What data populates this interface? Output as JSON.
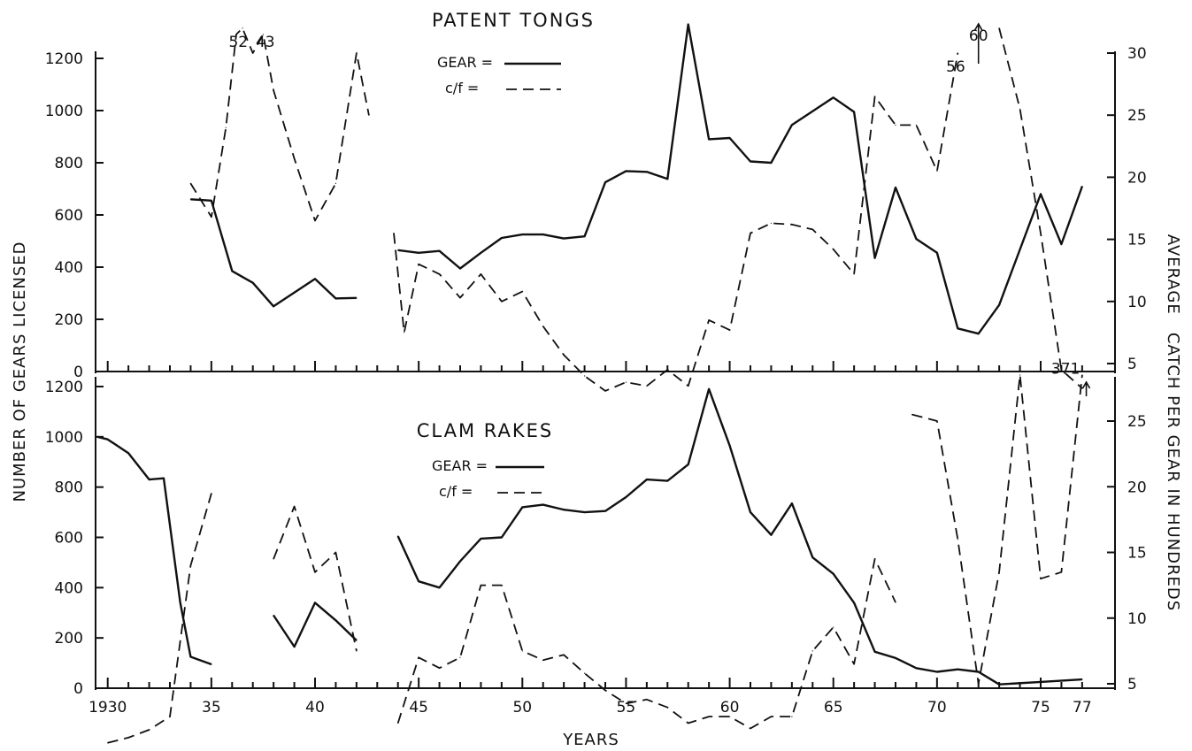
{
  "y_left_title": "NUMBER OF GEARS LICENSED",
  "y_right_title": "AVERAGE   CATCH PER GEAR IN HUNDREDS",
  "x_title": "YEARS",
  "x_tick_labels": [
    {
      "year": 1930,
      "label": "1930"
    },
    {
      "year": 1935,
      "label": "35"
    },
    {
      "year": 1940,
      "label": "40"
    },
    {
      "year": 1945,
      "label": "45"
    },
    {
      "year": 1950,
      "label": "50"
    },
    {
      "year": 1955,
      "label": "55"
    },
    {
      "year": 1960,
      "label": "60"
    },
    {
      "year": 1965,
      "label": "65"
    },
    {
      "year": 1970,
      "label": "70"
    },
    {
      "year": 1975,
      "label": "75"
    },
    {
      "year": 1977,
      "label": "77"
    }
  ],
  "chart_data": [
    {
      "type": "line",
      "title": "PATENT TONGS",
      "xlabel": "YEARS",
      "ylabel": "NUMBER OF GEARS LICENSED",
      "y2label": "AVERAGE CATCH PER GEAR IN HUNDREDS",
      "xlim": [
        1929.5,
        1978.5
      ],
      "ylim": [
        0,
        1200
      ],
      "y2lim": [
        0,
        30
      ],
      "y_ticks": [
        0,
        200,
        400,
        600,
        800,
        1000,
        1200
      ],
      "y2_ticks": [
        5,
        10,
        15,
        20,
        25,
        30
      ],
      "legend": [
        {
          "label": "GEAR =",
          "style": "solid"
        },
        {
          "label": "c/f =",
          "style": "dashed"
        }
      ],
      "series": [
        {
          "name": "GEAR",
          "axis": "left",
          "style": "solid",
          "segments": [
            [
              [
                1934,
                660
              ],
              [
                1935,
                655
              ],
              [
                1936,
                385
              ],
              [
                1937,
                340
              ],
              [
                1938,
                250
              ],
              [
                1940,
                355
              ],
              [
                1941,
                280
              ],
              [
                1942,
                282
              ]
            ],
            [
              [
                1944,
                465
              ],
              [
                1945,
                455
              ],
              [
                1946,
                462
              ],
              [
                1947,
                395
              ],
              [
                1948,
                455
              ],
              [
                1949,
                512
              ],
              [
                1950,
                525
              ],
              [
                1951,
                525
              ],
              [
                1952,
                510
              ],
              [
                1953,
                518
              ],
              [
                1954,
                725
              ],
              [
                1955,
                768
              ],
              [
                1956,
                765
              ],
              [
                1957,
                738
              ],
              [
                1958,
                1330
              ],
              [
                1959,
                890
              ],
              [
                1960,
                895
              ],
              [
                1961,
                805
              ],
              [
                1962,
                800
              ],
              [
                1963,
                945
              ],
              [
                1965,
                1050
              ],
              [
                1966,
                995
              ],
              [
                1967,
                435
              ],
              [
                1968,
                705
              ],
              [
                1969,
                508
              ],
              [
                1970,
                455
              ],
              [
                1971,
                165
              ],
              [
                1972,
                145
              ],
              [
                1973,
                255
              ],
              [
                1975,
                680
              ],
              [
                1976,
                488
              ],
              [
                1977,
                710
              ]
            ]
          ]
        },
        {
          "name": "c/f",
          "axis": "right",
          "style": "dashed",
          "segments": [
            [
              [
                1934,
                19.5
              ],
              [
                1935,
                16.8
              ],
              [
                1935.7,
                24
              ],
              [
                1936.2,
                31.5
              ],
              [
                1936.5,
                32
              ],
              [
                1937,
                30
              ],
              [
                1937.5,
                31.5
              ],
              [
                1938,
                27
              ],
              [
                1939,
                21.5
              ],
              [
                1940,
                16.5
              ],
              [
                1941,
                19.5
              ],
              [
                1942,
                30
              ],
              [
                1942.6,
                25
              ]
            ],
            [
              [
                1943.8,
                15.5
              ],
              [
                1944.3,
                7.5
              ],
              [
                1945,
                13
              ],
              [
                1946,
                12.2
              ],
              [
                1947,
                10.3
              ],
              [
                1948,
                12.2
              ],
              [
                1949,
                10
              ],
              [
                1950,
                10.8
              ],
              [
                1951,
                8
              ],
              [
                1952,
                5.7
              ],
              [
                1953,
                4
              ],
              [
                1954,
                2.8
              ],
              [
                1955,
                3.5
              ],
              [
                1956,
                3.2
              ],
              [
                1957,
                4.5
              ],
              [
                1958,
                3.2
              ],
              [
                1959,
                8.5
              ],
              [
                1960,
                7.7
              ],
              [
                1961,
                15.5
              ],
              [
                1962,
                16.3
              ],
              [
                1963,
                16.2
              ],
              [
                1964,
                15.8
              ],
              [
                1965,
                14.2
              ],
              [
                1966,
                12.2
              ],
              [
                1967,
                26.5
              ],
              [
                1968,
                24.2
              ],
              [
                1969,
                24.2
              ],
              [
                1970,
                20.5
              ],
              [
                1971,
                30
              ]
            ],
            [
              [
                1973,
                32
              ],
              [
                1974,
                25.5
              ],
              [
                1975,
                15.5
              ],
              [
                1976,
                4.5
              ],
              [
                1977,
                3
              ]
            ]
          ]
        }
      ],
      "annotations": [
        {
          "label": "52",
          "x": 1936.3,
          "y": 30.5
        },
        {
          "label": "43",
          "x": 1937.6,
          "y": 30.5
        },
        {
          "label": "56",
          "x": 1970.9,
          "y": 28.5
        },
        {
          "label": "60",
          "x": 1972,
          "y": 31
        }
      ]
    },
    {
      "type": "line",
      "title": "CLAM RAKES",
      "xlabel": "YEARS",
      "ylabel": "NUMBER OF GEARS LICENSED",
      "y2label": "AVERAGE CATCH PER GEAR IN HUNDREDS",
      "xlim": [
        1929.5,
        1978.5
      ],
      "ylim": [
        0,
        1200
      ],
      "y2lim": [
        0,
        30
      ],
      "y_ticks": [
        0,
        200,
        400,
        600,
        800,
        1000,
        1200
      ],
      "y2_ticks": [
        5,
        10,
        15,
        20,
        25
      ],
      "legend": [
        {
          "label": "GEAR =",
          "style": "solid"
        },
        {
          "label": "c/f =",
          "style": "dashed"
        }
      ],
      "series": [
        {
          "name": "GEAR",
          "axis": "left",
          "style": "solid",
          "segments": [
            [
              [
                1929.5,
                1000
              ],
              [
                1930,
                990
              ],
              [
                1931,
                935
              ],
              [
                1932,
                830
              ],
              [
                1932.7,
                835
              ],
              [
                1933.5,
                340
              ],
              [
                1934,
                125
              ],
              [
                1935,
                95
              ]
            ],
            [
              [
                1938,
                290
              ],
              [
                1939,
                165
              ],
              [
                1940,
                340
              ],
              [
                1941,
                270
              ],
              [
                1942,
                190
              ]
            ],
            [
              [
                1944,
                605
              ],
              [
                1945,
                425
              ],
              [
                1946,
                400
              ],
              [
                1947,
                505
              ],
              [
                1948,
                595
              ],
              [
                1949,
                600
              ],
              [
                1950,
                720
              ],
              [
                1951,
                730
              ],
              [
                1952,
                710
              ],
              [
                1953,
                700
              ],
              [
                1954,
                705
              ],
              [
                1955,
                760
              ],
              [
                1956,
                830
              ],
              [
                1957,
                825
              ],
              [
                1958,
                890
              ],
              [
                1959,
                1190
              ],
              [
                1960,
                965
              ],
              [
                1961,
                700
              ],
              [
                1962,
                610
              ],
              [
                1963,
                735
              ],
              [
                1964,
                520
              ],
              [
                1965,
                455
              ],
              [
                1966,
                340
              ],
              [
                1967,
                145
              ],
              [
                1968,
                120
              ],
              [
                1969,
                80
              ],
              [
                1970,
                65
              ],
              [
                1971,
                75
              ],
              [
                1972,
                65
              ],
              [
                1973,
                15
              ],
              [
                1975,
                25
              ],
              [
                1977,
                35
              ]
            ]
          ]
        },
        {
          "name": "c/f",
          "axis": "right",
          "style": "dashed",
          "segments": [
            [
              [
                1930,
                0.5
              ],
              [
                1931,
                0.9
              ],
              [
                1932,
                1.5
              ],
              [
                1933,
                2.5
              ],
              [
                1934,
                14
              ],
              [
                1935,
                19.5
              ]
            ],
            [
              [
                1938,
                14.5
              ],
              [
                1939,
                18.5
              ],
              [
                1940,
                13.5
              ],
              [
                1941,
                15
              ],
              [
                1942,
                7.5
              ]
            ],
            [
              [
                1944,
                2
              ],
              [
                1945,
                7
              ],
              [
                1946,
                6.2
              ],
              [
                1947,
                7
              ],
              [
                1948,
                12.5
              ],
              [
                1949,
                12.5
              ],
              [
                1950,
                7.5
              ],
              [
                1951,
                6.8
              ],
              [
                1952,
                7.2
              ],
              [
                1953,
                5.8
              ],
              [
                1954,
                4.5
              ],
              [
                1955,
                3.5
              ],
              [
                1956,
                3.8
              ],
              [
                1957,
                3.2
              ],
              [
                1958,
                2
              ],
              [
                1959,
                2.5
              ],
              [
                1960,
                2.5
              ],
              [
                1961,
                1.6
              ],
              [
                1962,
                2.5
              ],
              [
                1963,
                2.5
              ],
              [
                1964,
                7.5
              ],
              [
                1965,
                9.3
              ],
              [
                1966,
                6.5
              ],
              [
                1967,
                14.5
              ],
              [
                1968,
                11.2
              ]
            ],
            [
              [
                1968.8,
                25.5
              ],
              [
                1970,
                25
              ],
              [
                1971,
                16
              ],
              [
                1972,
                5
              ],
              [
                1973,
                13.5
              ],
              [
                1974,
                28.5
              ],
              [
                1975,
                13
              ],
              [
                1976,
                13.5
              ],
              [
                1977,
                28.5
              ]
            ]
          ]
        }
      ],
      "annotations": [
        {
          "label": "371",
          "x": 1976.2,
          "y": 28.6
        }
      ]
    }
  ]
}
